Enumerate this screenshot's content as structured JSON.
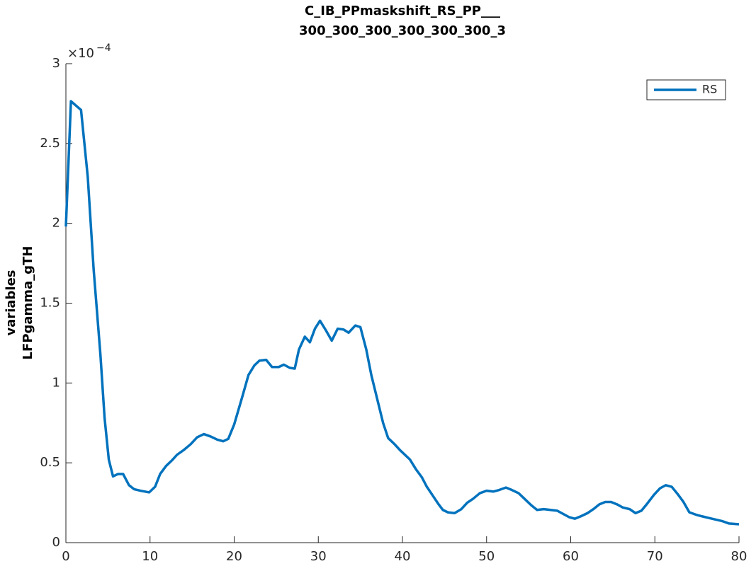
{
  "chart_data": {
    "type": "line",
    "title": [
      "C_IB_PPmaskshift_RS_PP___",
      "300_300_300_300_300_300_3"
    ],
    "y_label": [
      "variables",
      "LFPgamma_gTH"
    ],
    "y_multiplier": {
      "base": "×10",
      "exponent": "−4"
    },
    "x": [
      0,
      0.6,
      1.8,
      2.6,
      3.3,
      4.1,
      4.6,
      5.1,
      5.6,
      6.2,
      6.8,
      7.5,
      8.1,
      8.9,
      9.9,
      10.6,
      11.2,
      11.9,
      12.6,
      13.2,
      14,
      14.8,
      15.6,
      16.4,
      17.2,
      18,
      18.7,
      19.3,
      20,
      21,
      21.7,
      22.4,
      23,
      23.8,
      24.5,
      25.3,
      25.9,
      26.6,
      27.2,
      27.7,
      28.4,
      29,
      29.6,
      30.2,
      30.9,
      31.6,
      32.3,
      33,
      33.6,
      34.4,
      35,
      35.7,
      36.3,
      37,
      37.7,
      38.3,
      39,
      39.7,
      40.3,
      40.9,
      41.6,
      42.3,
      42.9,
      43.6,
      44.3,
      44.8,
      45.4,
      46.2,
      47,
      47.7,
      48.4,
      49.2,
      50,
      50.8,
      51.5,
      52.3,
      53,
      53.8,
      54.6,
      55.3,
      56,
      56.8,
      57.6,
      58.4,
      59.1,
      59.8,
      60.5,
      61.2,
      62,
      62.7,
      63.4,
      64.1,
      64.8,
      65.5,
      66.2,
      67,
      67.7,
      68.4,
      69.1,
      69.9,
      70.6,
      71.3,
      72,
      72.7,
      73.4,
      74.1,
      74.9,
      75.6,
      76.4,
      77.2,
      78,
      78.8,
      80
    ],
    "series": [
      {
        "name": "RS",
        "color": "#0072bd",
        "values": [
          1.98,
          2.765,
          2.71,
          2.29,
          1.71,
          1.18,
          0.78,
          0.52,
          0.415,
          0.43,
          0.43,
          0.36,
          0.335,
          0.325,
          0.315,
          0.35,
          0.43,
          0.48,
          0.515,
          0.55,
          0.58,
          0.615,
          0.66,
          0.68,
          0.665,
          0.645,
          0.635,
          0.65,
          0.74,
          0.92,
          1.05,
          1.11,
          1.14,
          1.145,
          1.1,
          1.1,
          1.115,
          1.095,
          1.09,
          1.21,
          1.29,
          1.255,
          1.34,
          1.39,
          1.33,
          1.265,
          1.34,
          1.335,
          1.315,
          1.36,
          1.35,
          1.21,
          1.05,
          0.9,
          0.75,
          0.655,
          0.62,
          0.58,
          0.55,
          0.52,
          0.46,
          0.41,
          0.35,
          0.295,
          0.24,
          0.205,
          0.19,
          0.185,
          0.21,
          0.25,
          0.275,
          0.31,
          0.325,
          0.32,
          0.33,
          0.345,
          0.33,
          0.31,
          0.27,
          0.235,
          0.205,
          0.21,
          0.205,
          0.2,
          0.18,
          0.16,
          0.15,
          0.165,
          0.185,
          0.21,
          0.24,
          0.255,
          0.255,
          0.24,
          0.22,
          0.21,
          0.185,
          0.2,
          0.245,
          0.3,
          0.34,
          0.36,
          0.35,
          0.305,
          0.255,
          0.19,
          0.175,
          0.165,
          0.155,
          0.145,
          0.135,
          0.12,
          0.115
        ]
      }
    ],
    "xlim": [
      0,
      80
    ],
    "xticks": [
      0,
      10,
      20,
      30,
      40,
      50,
      60,
      70,
      80
    ],
    "ylim": [
      0,
      3
    ],
    "yticks": [
      0,
      0.5,
      1,
      1.5,
      2,
      2.5,
      3
    ],
    "legend": "northeast"
  }
}
